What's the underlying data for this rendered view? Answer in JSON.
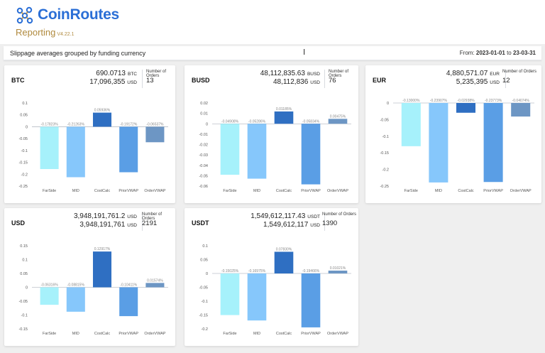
{
  "brand": {
    "name": "CoinRoutes",
    "reporting": "Reporting",
    "version": "V4.22.1",
    "logo_icon": "coinroutes-logo-icon"
  },
  "subheader": {
    "title": "Slippage averages grouped by funding currency",
    "from_label": "From:",
    "from_date": "2023-01-01",
    "to_label": "to",
    "to_date": "23-03-31"
  },
  "colors": {
    "FarSide": "#a6f1fb",
    "MID": "#86c7fb",
    "CostCalc": "#2f6fc2",
    "PriorVWAP": "#5a9ee5",
    "OrderVWAP": "#6d96c4"
  },
  "cards": [
    {
      "currency": "BTC",
      "amount": "690.0713",
      "amount_unit": "BTC",
      "usd_amount": "17,096,355",
      "usd_unit": "USD",
      "orders_label": "Number of Orders",
      "orders": "13"
    },
    {
      "currency": "BUSD",
      "amount": "48,112,835.63",
      "amount_unit": "BUSD",
      "usd_amount": "48,112,836",
      "usd_unit": "USD",
      "orders_label": "Number of Orders",
      "orders": "76"
    },
    {
      "currency": "EUR",
      "amount": "4,880,571.07",
      "amount_unit": "EUR",
      "usd_amount": "5,235,395",
      "usd_unit": "USD",
      "orders_label": "Number of Orders",
      "orders": "12"
    },
    {
      "currency": "USD",
      "amount": "3,948,191,761.2",
      "amount_unit": "USD",
      "usd_amount": "3,948,191,761",
      "usd_unit": "USD",
      "orders_label": "Number of Orders",
      "orders": "2191"
    },
    {
      "currency": "USDT",
      "amount": "1,549,612,117.43",
      "amount_unit": "USDT",
      "usd_amount": "1,549,612,117",
      "usd_unit": "USD",
      "orders_label": "Number of Orders",
      "orders": "1390"
    }
  ],
  "chart_data": [
    {
      "type": "bar",
      "title": "BTC",
      "categories": [
        "FarSide",
        "MID",
        "CostCalc",
        "PriorVWAP",
        "OrderVWAP"
      ],
      "values": [
        -0.17823,
        -0.21263,
        0.05936,
        -0.19172,
        -0.06537
      ],
      "labels": [
        "-0.17823%",
        "-0.21263%",
        "0.05936%",
        "-0.19172%",
        "-0.06537%"
      ],
      "ticks": [
        0.1,
        0.05,
        0,
        -0.05,
        -0.1,
        -0.15,
        -0.2,
        -0.25
      ],
      "ylim": [
        -0.25,
        0.1
      ]
    },
    {
      "type": "bar",
      "title": "BUSD",
      "categories": [
        "FarSide",
        "MID",
        "CostCalc",
        "PriorVWAP",
        "OrderVWAP"
      ],
      "values": [
        -0.04908,
        -0.05286,
        0.01185,
        -0.05834,
        0.00475
      ],
      "labels": [
        "-0.04908%",
        "-0.05286%",
        "0.01185%",
        "-0.05834%",
        "0.00475%"
      ],
      "ticks": [
        0.02,
        0.01,
        0,
        -0.01,
        -0.02,
        -0.03,
        -0.04,
        -0.05,
        -0.06
      ],
      "ylim": [
        -0.06,
        0.02
      ]
    },
    {
      "type": "bar",
      "title": "EUR",
      "categories": [
        "FarSide",
        "MID",
        "CostCalc",
        "PriorVWAP",
        "OrderVWAP"
      ],
      "values": [
        -0.13,
        -0.23907,
        -0.02938,
        -0.23773,
        -0.04074
      ],
      "labels": [
        "-0.13000%",
        "-0.23907%",
        "-0.02938%",
        "-0.23773%",
        "-0.04074%"
      ],
      "ticks": [
        0,
        -0.05,
        -0.1,
        -0.15,
        -0.2,
        -0.25
      ],
      "ylim": [
        -0.25,
        0
      ]
    },
    {
      "type": "bar",
      "title": "USD",
      "categories": [
        "FarSide",
        "MID",
        "CostCalc",
        "PriorVWAP",
        "OrderVWAP"
      ],
      "values": [
        -0.06316,
        -0.08815,
        0.12917,
        -0.10411,
        0.01574
      ],
      "labels": [
        "-0.06316%",
        "-0.08815%",
        "0.12917%",
        "-0.10411%",
        "0.01574%"
      ],
      "ticks": [
        0.15,
        0.1,
        0.05,
        0,
        -0.05,
        -0.1,
        -0.15
      ],
      "ylim": [
        -0.15,
        0.15
      ]
    },
    {
      "type": "bar",
      "title": "USDT",
      "categories": [
        "FarSide",
        "MID",
        "CostCalc",
        "PriorVWAP",
        "OrderVWAP"
      ],
      "values": [
        -0.15025,
        -0.16975,
        0.0783,
        -0.19466,
        0.01021
      ],
      "labels": [
        "-0.15025%",
        "-0.16975%",
        "0.07830%",
        "-0.19466%",
        "0.01021%"
      ],
      "ticks": [
        0.1,
        0.05,
        0,
        -0.05,
        -0.1,
        -0.15,
        -0.2
      ],
      "ylim": [
        -0.2,
        0.1
      ]
    }
  ]
}
